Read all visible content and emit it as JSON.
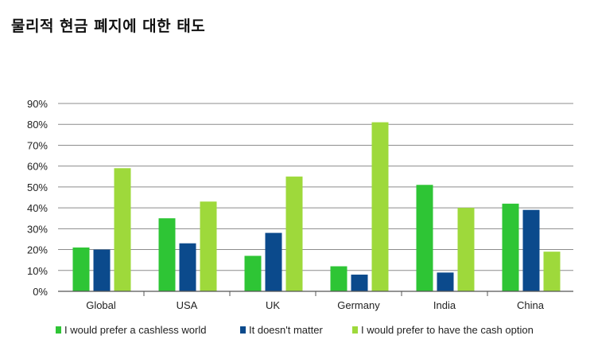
{
  "title": "물리적 현금 폐지에 대한 태도",
  "colors": {
    "cashless": "#2ec535",
    "doesnt_matter": "#0b4a8c",
    "cash_option": "#9ed93b",
    "grid": "#8c8c8c",
    "axis": "#555555"
  },
  "chart_data": {
    "type": "bar",
    "title": "물리적 현금 폐지에 대한 태도",
    "xlabel": "",
    "ylabel": "",
    "categories": [
      "Global",
      "USA",
      "UK",
      "Germany",
      "India",
      "China"
    ],
    "series": [
      {
        "name": "I would prefer a cashless world",
        "values": [
          21,
          35,
          17,
          12,
          51,
          42
        ]
      },
      {
        "name": "It doesn't matter",
        "values": [
          20,
          23,
          28,
          8,
          9,
          39
        ]
      },
      {
        "name": "I would prefer to have the cash option",
        "values": [
          59,
          43,
          55,
          81,
          40,
          19
        ]
      }
    ],
    "ylim": [
      0,
      90
    ],
    "yticks": [
      "0%",
      "10%",
      "20%",
      "30%",
      "40%",
      "50%",
      "60%",
      "70%",
      "80%",
      "90%"
    ],
    "grid": true,
    "legend_position": "bottom"
  }
}
